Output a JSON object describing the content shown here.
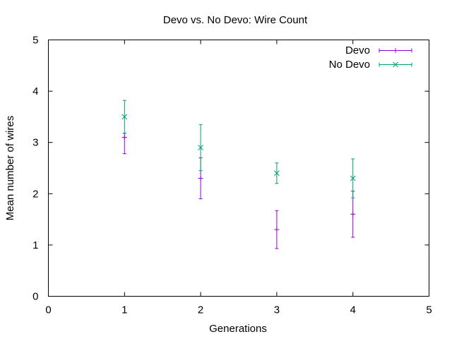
{
  "chart_data": {
    "type": "scatter",
    "title": "Devo vs. No Devo: Wire Count",
    "xlabel": "Generations",
    "ylabel": "Mean number of wires",
    "xlim": [
      0,
      5
    ],
    "ylim": [
      0,
      5
    ],
    "xticks": [
      0,
      1,
      2,
      3,
      4,
      5
    ],
    "yticks": [
      0,
      1,
      2,
      3,
      4,
      5
    ],
    "grid": false,
    "legend_position": "top-right",
    "series": [
      {
        "name": "Devo",
        "color": "#9400d3",
        "marker": "plus",
        "points": [
          {
            "x": 1,
            "y": 3.1,
            "low": 2.78,
            "high": 3.18
          },
          {
            "x": 2,
            "y": 2.3,
            "low": 1.9,
            "high": 2.7
          },
          {
            "x": 3,
            "y": 1.3,
            "low": 0.93,
            "high": 1.67
          },
          {
            "x": 4,
            "y": 1.6,
            "low": 1.15,
            "high": 2.05
          }
        ]
      },
      {
        "name": "No Devo",
        "color": "#009e73",
        "marker": "cross",
        "points": [
          {
            "x": 1,
            "y": 3.5,
            "low": 3.18,
            "high": 3.82
          },
          {
            "x": 2,
            "y": 2.9,
            "low": 2.45,
            "high": 3.35
          },
          {
            "x": 3,
            "y": 2.4,
            "low": 2.2,
            "high": 2.6
          },
          {
            "x": 4,
            "y": 2.3,
            "low": 1.92,
            "high": 2.68
          }
        ]
      }
    ]
  }
}
